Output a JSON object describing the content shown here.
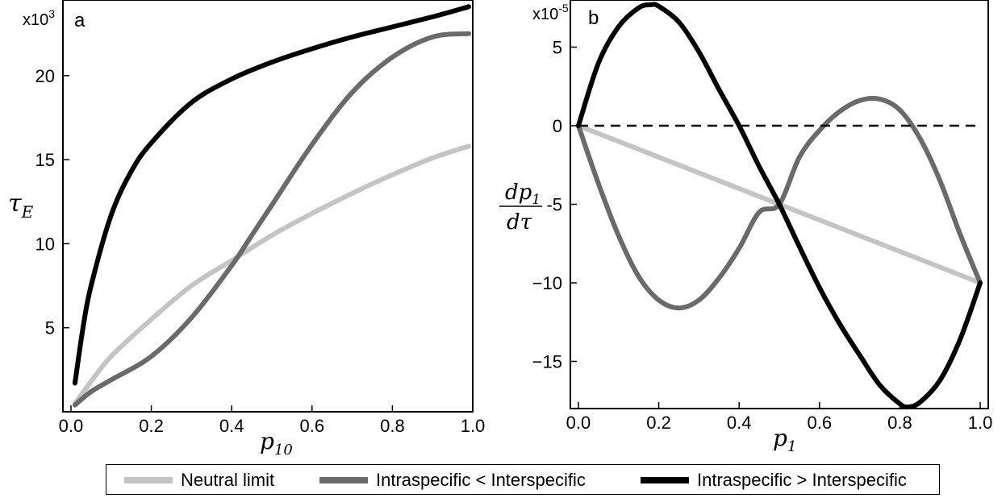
{
  "colors": {
    "neutral": "#c4c4c4",
    "intra_lt": "#6a6a6a",
    "intra_gt": "#000000"
  },
  "legend": {
    "neutral": "Neutral limit",
    "intra_lt": "Intraspecific < Interspecific",
    "intra_gt": "Intraspecific > Interspecific"
  },
  "chart_data": [
    {
      "type": "line",
      "panel_label": "a",
      "multiplier": "x10",
      "multiplier_exp": "3",
      "xlabel_base": "p",
      "xlabel_sub": "10",
      "ylabel_base": "τ",
      "ylabel_sub": "E",
      "xlim": [
        -0.02,
        1.0
      ],
      "ylim": [
        0,
        24.5
      ],
      "xticks": [
        0.0,
        0.2,
        0.4,
        0.6,
        0.8,
        1.0
      ],
      "xtick_labels": [
        "0.0",
        "0.2",
        "0.4",
        "0.6",
        "0.8",
        "1.0"
      ],
      "yticks": [
        5,
        10,
        15,
        20
      ],
      "ytick_labels": [
        "5",
        "10",
        "15",
        "20"
      ],
      "series": [
        {
          "key": "neutral",
          "x": [
            0.01,
            0.05,
            0.1,
            0.2,
            0.3,
            0.4,
            0.5,
            0.6,
            0.7,
            0.8,
            0.9,
            0.99
          ],
          "y": [
            0.5,
            1.8,
            3.3,
            5.5,
            7.5,
            9.0,
            10.5,
            11.8,
            13.0,
            14.1,
            15.1,
            15.8
          ]
        },
        {
          "key": "intra_lt",
          "x": [
            0.01,
            0.05,
            0.1,
            0.2,
            0.3,
            0.4,
            0.45,
            0.5,
            0.6,
            0.7,
            0.8,
            0.9,
            0.99
          ],
          "y": [
            0.4,
            1.2,
            1.9,
            3.3,
            5.6,
            8.7,
            10.5,
            12.3,
            15.9,
            19.0,
            21.1,
            22.3,
            22.5
          ]
        },
        {
          "key": "intra_gt",
          "x": [
            0.01,
            0.03,
            0.05,
            0.1,
            0.15,
            0.2,
            0.3,
            0.4,
            0.5,
            0.6,
            0.7,
            0.8,
            0.9,
            0.99
          ],
          "y": [
            1.7,
            5.0,
            7.5,
            11.7,
            14.3,
            16.0,
            18.4,
            19.8,
            20.8,
            21.6,
            22.3,
            22.9,
            23.5,
            24.1
          ]
        }
      ]
    },
    {
      "type": "line",
      "panel_label": "b",
      "multiplier": "x10",
      "multiplier_exp": "-5",
      "xlabel_base": "p",
      "xlabel_sub": "1",
      "ylabel_num": "dp",
      "ylabel_num_sub": "1",
      "ylabel_den": "dτ",
      "xlim": [
        -0.02,
        1.02
      ],
      "ylim": [
        -18,
        8
      ],
      "xticks": [
        0.0,
        0.2,
        0.4,
        0.6,
        0.8,
        1.0
      ],
      "xtick_labels": [
        "0.0",
        "0.2",
        "0.4",
        "0.6",
        "0.8",
        "1.0"
      ],
      "yticks": [
        5,
        0,
        -5,
        -10,
        -15
      ],
      "ytick_labels": [
        "5",
        "0",
        "-5",
        "−10",
        "−15"
      ],
      "series": [
        {
          "key": "neutral",
          "x": [
            0,
            1
          ],
          "y": [
            0,
            -10
          ]
        },
        {
          "key": "intra_lt",
          "x": [
            0,
            0.05,
            0.1,
            0.15,
            0.2,
            0.25,
            0.3,
            0.35,
            0.4,
            0.45,
            0.5,
            0.55,
            0.6,
            0.65,
            0.7,
            0.75,
            0.8,
            0.85,
            0.9,
            0.95,
            1.0
          ],
          "y": [
            0,
            -3.7,
            -7.0,
            -9.6,
            -11.1,
            -11.6,
            -11.1,
            -9.7,
            -7.8,
            -5.5,
            -5.0,
            -2.0,
            -0.3,
            0.9,
            1.6,
            1.7,
            1.0,
            -0.8,
            -3.5,
            -6.9,
            -10.0
          ]
        },
        {
          "key": "intra_gt",
          "x": [
            0,
            0.05,
            0.1,
            0.15,
            0.18,
            0.2,
            0.25,
            0.3,
            0.35,
            0.4,
            0.45,
            0.5,
            0.55,
            0.6,
            0.65,
            0.7,
            0.75,
            0.8,
            0.82,
            0.85,
            0.9,
            0.95,
            1.0
          ],
          "y": [
            0,
            4.0,
            6.3,
            7.5,
            7.7,
            7.6,
            6.6,
            4.7,
            2.3,
            0.0,
            -2.6,
            -5.0,
            -7.7,
            -10.3,
            -12.6,
            -14.6,
            -16.5,
            -17.7,
            -17.9,
            -17.6,
            -16.2,
            -13.6,
            -10.0
          ]
        },
        {
          "key": "zero",
          "dashed": true,
          "x": [
            0,
            1
          ],
          "y": [
            0,
            0
          ]
        }
      ]
    }
  ]
}
